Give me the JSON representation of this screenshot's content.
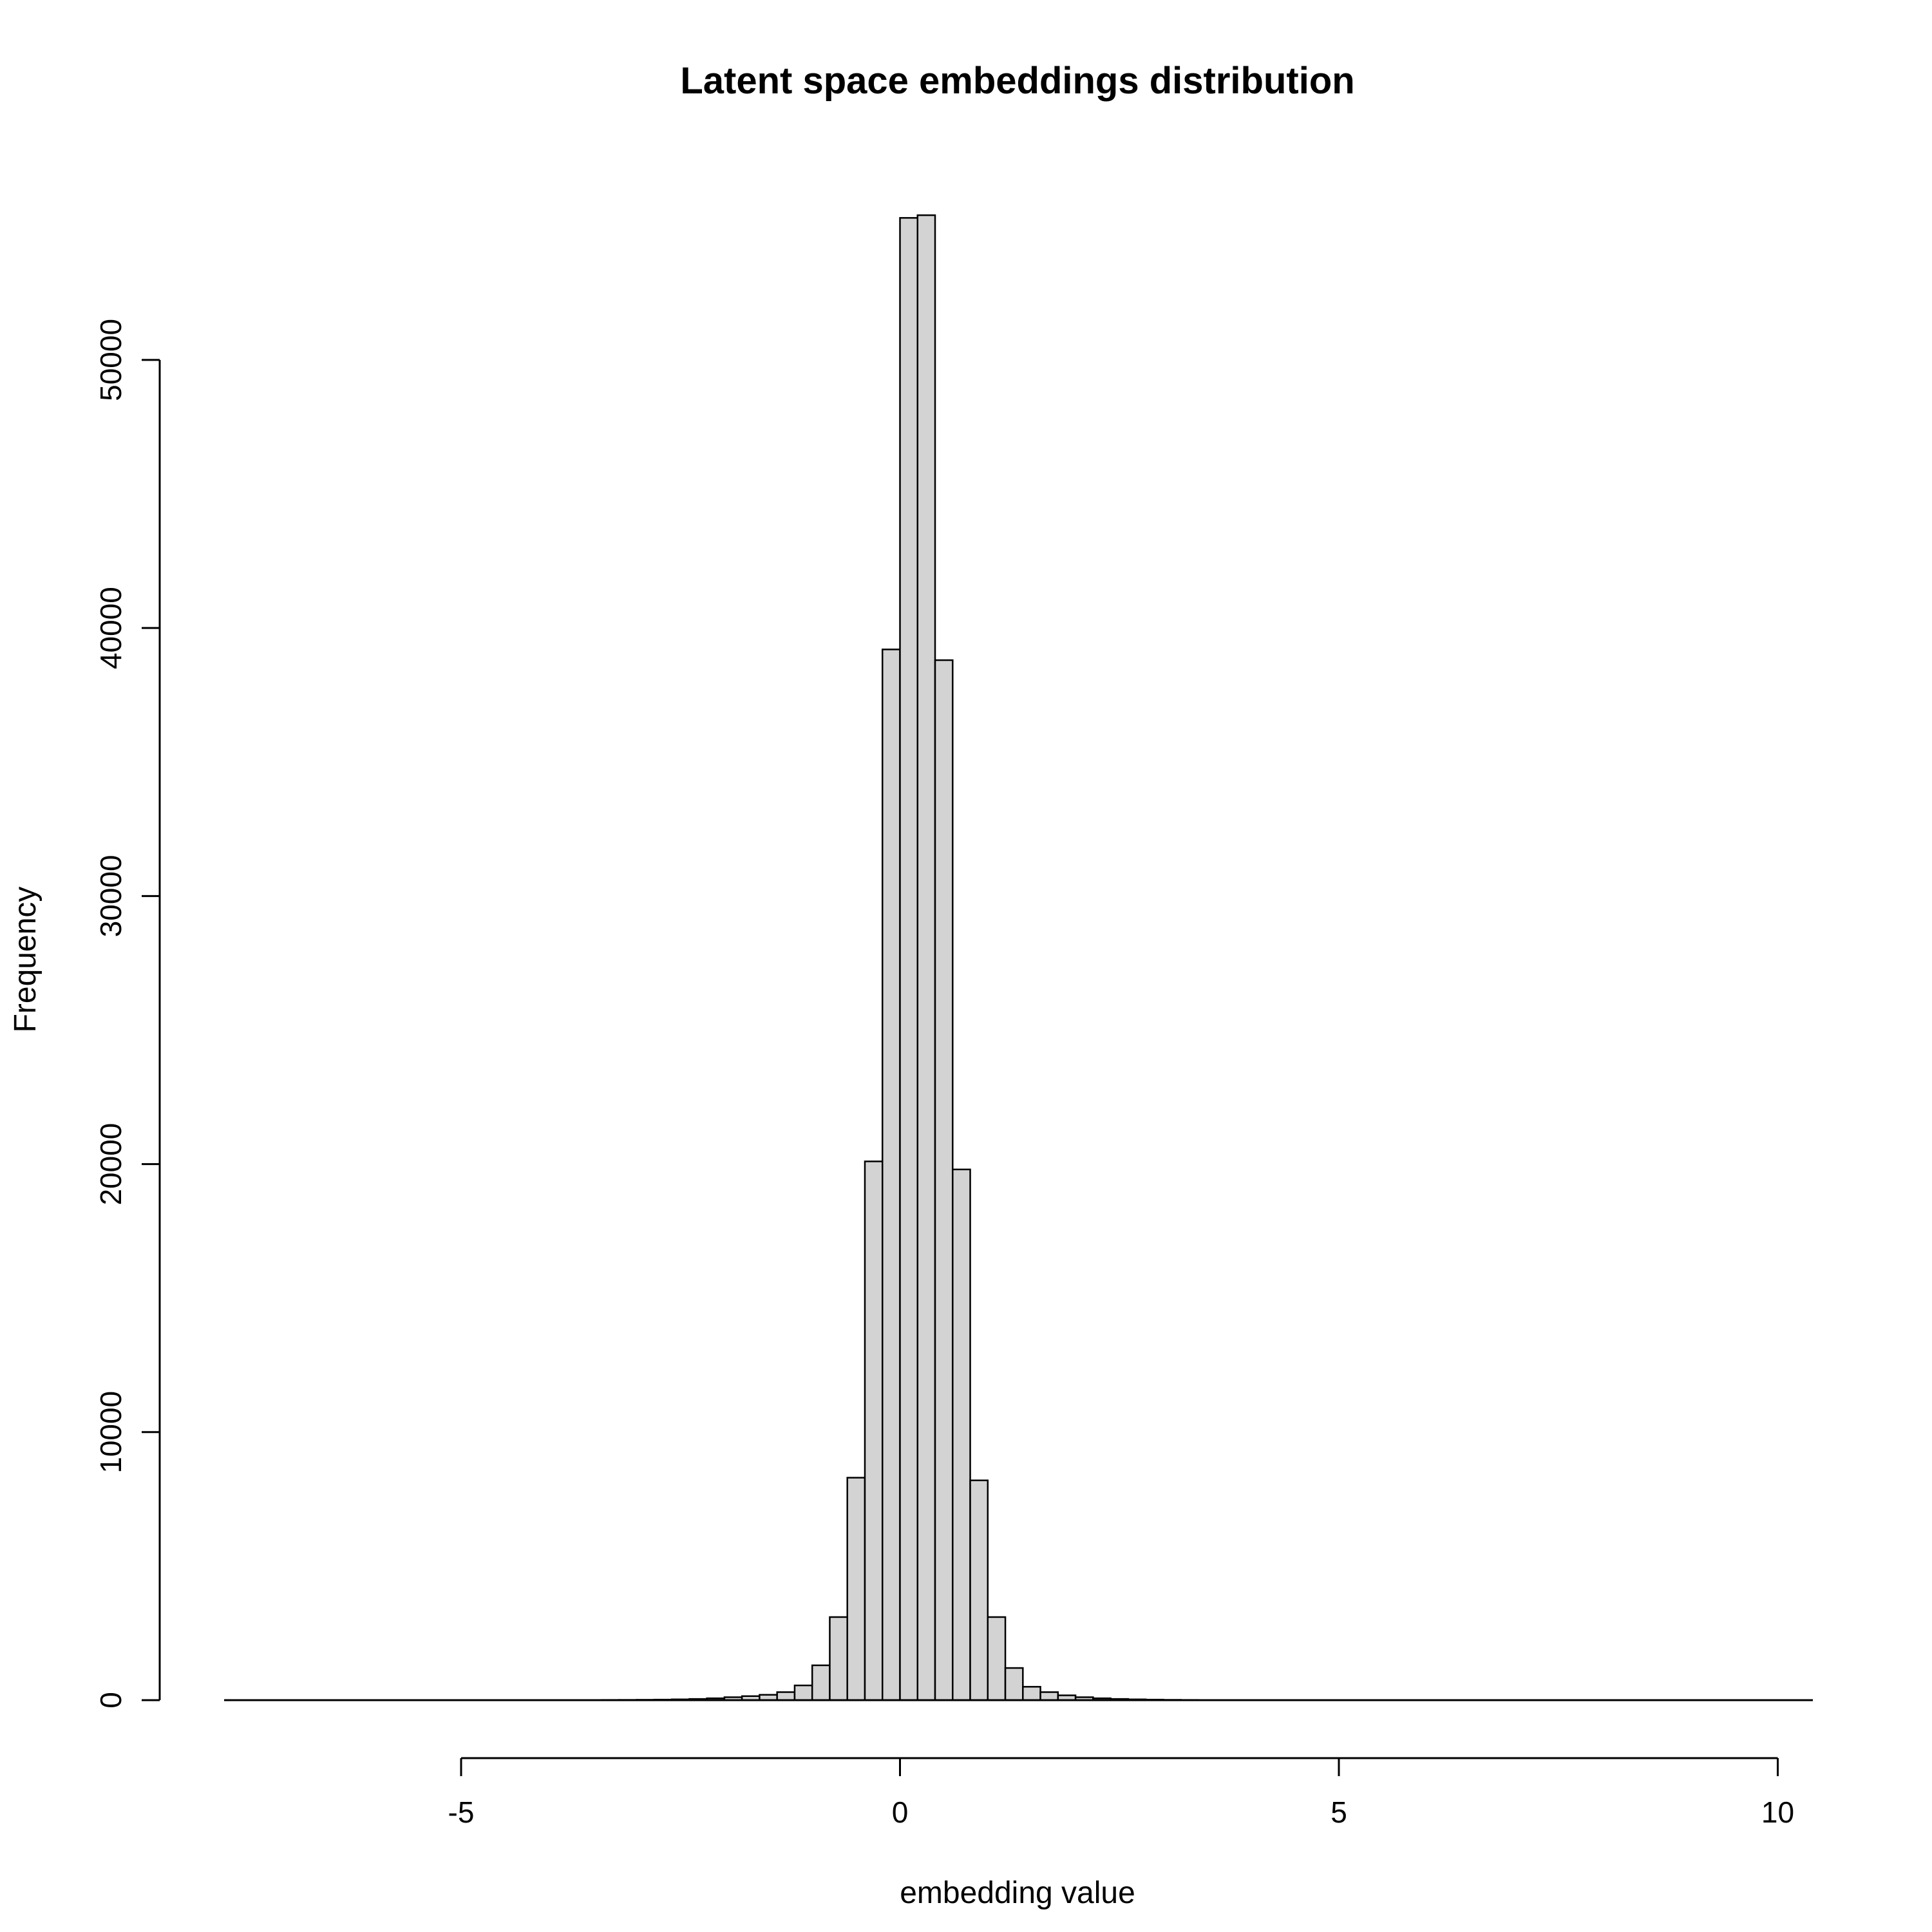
{
  "chart_data": {
    "type": "histogram",
    "title": "Latent space embeddings distribution",
    "xlabel": "embedding value",
    "ylabel": "Frequency",
    "bar_color": "#d3d3d3",
    "edge_color": "#000000",
    "xlim": [
      -7.7,
      10.4
    ],
    "ylim": [
      0,
      55500
    ],
    "data_range": [
      -7.7,
      10.4
    ],
    "x_ticks": [
      -5,
      0,
      5,
      10
    ],
    "x_tick_labels": [
      "-5",
      "0",
      "5",
      "10"
    ],
    "y_ticks": [
      0,
      10000,
      20000,
      30000,
      40000,
      50000
    ],
    "y_tick_labels": [
      "0",
      "10000",
      "20000",
      "30000",
      "40000",
      "50000"
    ],
    "bins": [
      {
        "x0": -3.6,
        "x1": -3.4,
        "count": 5
      },
      {
        "x0": -3.4,
        "x1": -3.2,
        "count": 8
      },
      {
        "x0": -3.2,
        "x1": -3.0,
        "count": 10
      },
      {
        "x0": -3.0,
        "x1": -2.8,
        "count": 14
      },
      {
        "x0": -2.8,
        "x1": -2.6,
        "count": 20
      },
      {
        "x0": -2.6,
        "x1": -2.4,
        "count": 30
      },
      {
        "x0": -2.4,
        "x1": -2.2,
        "count": 45
      },
      {
        "x0": -2.2,
        "x1": -2.0,
        "count": 70
      },
      {
        "x0": -2.0,
        "x1": -1.8,
        "count": 110
      },
      {
        "x0": -1.8,
        "x1": -1.6,
        "count": 150
      },
      {
        "x0": -1.6,
        "x1": -1.4,
        "count": 200
      },
      {
        "x0": -1.4,
        "x1": -1.2,
        "count": 300
      },
      {
        "x0": -1.2,
        "x1": -1.0,
        "count": 550
      },
      {
        "x0": -1.0,
        "x1": -0.8,
        "count": 1300
      },
      {
        "x0": -0.8,
        "x1": -0.6,
        "count": 3100
      },
      {
        "x0": -0.6,
        "x1": -0.4,
        "count": 8300
      },
      {
        "x0": -0.4,
        "x1": -0.2,
        "count": 20100
      },
      {
        "x0": -0.2,
        "x1": 0.0,
        "count": 39200
      },
      {
        "x0": 0.0,
        "x1": 0.2,
        "count": 55300
      },
      {
        "x0": 0.2,
        "x1": 0.4,
        "count": 55400
      },
      {
        "x0": 0.4,
        "x1": 0.6,
        "count": 38800
      },
      {
        "x0": 0.6,
        "x1": 0.8,
        "count": 19800
      },
      {
        "x0": 0.8,
        "x1": 1.0,
        "count": 8200
      },
      {
        "x0": 1.0,
        "x1": 1.2,
        "count": 3100
      },
      {
        "x0": 1.2,
        "x1": 1.4,
        "count": 1200
      },
      {
        "x0": 1.4,
        "x1": 1.6,
        "count": 500
      },
      {
        "x0": 1.6,
        "x1": 1.8,
        "count": 300
      },
      {
        "x0": 1.8,
        "x1": 2.0,
        "count": 180
      },
      {
        "x0": 2.0,
        "x1": 2.2,
        "count": 110
      },
      {
        "x0": 2.2,
        "x1": 2.4,
        "count": 70
      },
      {
        "x0": 2.4,
        "x1": 2.6,
        "count": 45
      },
      {
        "x0": 2.6,
        "x1": 2.8,
        "count": 30
      },
      {
        "x0": 2.8,
        "x1": 3.0,
        "count": 20
      },
      {
        "x0": 3.0,
        "x1": 3.2,
        "count": 12
      },
      {
        "x0": 3.2,
        "x1": 3.4,
        "count": 8
      }
    ]
  }
}
